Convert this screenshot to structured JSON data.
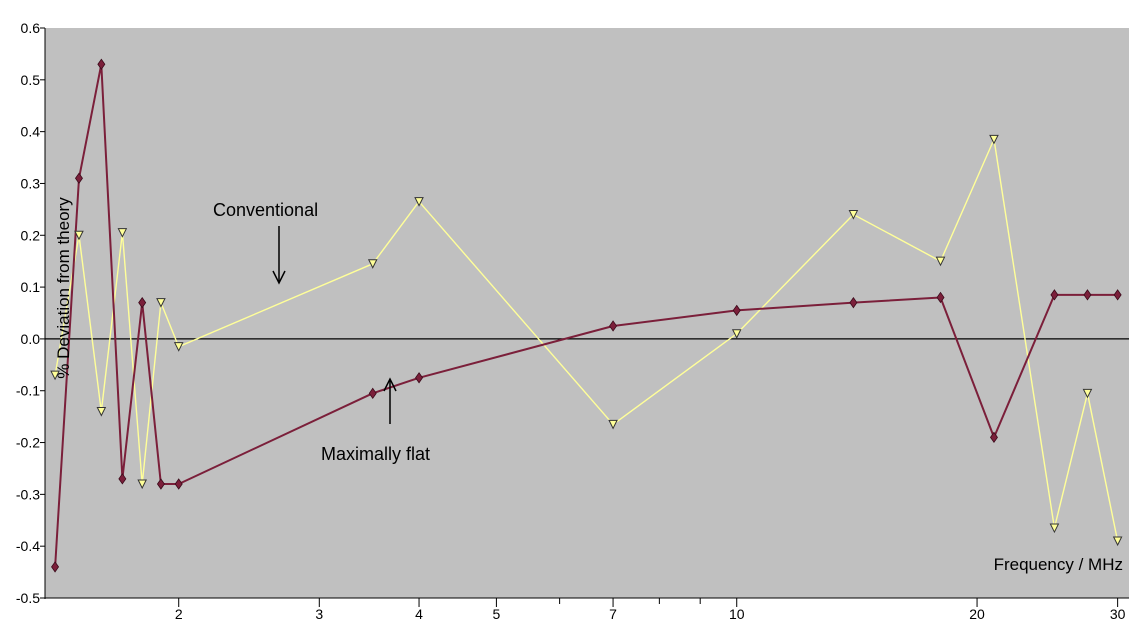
{
  "chart_data": {
    "type": "line",
    "xlabel": "Frequency / MHz",
    "ylabel": "% Deviation from theory",
    "xscale": "log",
    "xlim": [
      1.36,
      31
    ],
    "ylim": [
      -0.5,
      0.6
    ],
    "x_ticks": [
      2,
      3,
      4,
      5,
      7,
      10,
      20,
      30
    ],
    "x_tick_labels": [
      "2",
      "3",
      "4",
      "5",
      "7",
      "10",
      "20",
      "30"
    ],
    "x_minor_ticks": [
      6,
      8,
      9
    ],
    "y_ticks": [
      -0.5,
      -0.4,
      -0.3,
      -0.2,
      -0.1,
      0.0,
      0.1,
      0.2,
      0.3,
      0.4,
      0.5,
      0.6
    ],
    "y_tick_labels": [
      "-0.5",
      "-0.4",
      "-0.3",
      "-0.2",
      "-0.1",
      "0.0",
      "0.1",
      "0.2",
      "0.3",
      "0.4",
      "0.5",
      "0.6"
    ],
    "background": "#c0c0c0",
    "grid": false,
    "zero_line": true,
    "series": [
      {
        "name": "Conventional",
        "color": "#ffff99",
        "marker": "triangle-down",
        "x": [
          1.4,
          1.5,
          1.6,
          1.7,
          1.8,
          1.9,
          2.0,
          3.5,
          4.0,
          7.0,
          10.0,
          14.0,
          18.0,
          21.0,
          25.0,
          27.5,
          30.0
        ],
        "y": [
          -0.07,
          0.2,
          -0.14,
          0.205,
          -0.28,
          0.07,
          -0.015,
          0.145,
          0.265,
          -0.165,
          0.01,
          0.24,
          0.15,
          0.385,
          -0.365,
          -0.105,
          -0.39
        ]
      },
      {
        "name": "Maximally flat",
        "color": "#7b1f3a",
        "marker": "diamond",
        "x": [
          1.4,
          1.5,
          1.6,
          1.7,
          1.8,
          1.9,
          2.0,
          3.5,
          4.0,
          7.0,
          10.0,
          14.0,
          18.0,
          21.0,
          25.0,
          27.5,
          30.0
        ],
        "y": [
          -0.44,
          0.31,
          0.53,
          -0.27,
          0.07,
          -0.28,
          -0.28,
          -0.105,
          -0.075,
          0.025,
          0.055,
          0.07,
          0.08,
          -0.19,
          0.085,
          0.085,
          0.085
        ]
      }
    ],
    "annotations": [
      {
        "text": "Conventional",
        "points_to_x": 2.7,
        "points_to_y": 0.08
      },
      {
        "text": "Maximally flat",
        "points_to_x": 3.8,
        "points_to_y": -0.07
      }
    ]
  }
}
